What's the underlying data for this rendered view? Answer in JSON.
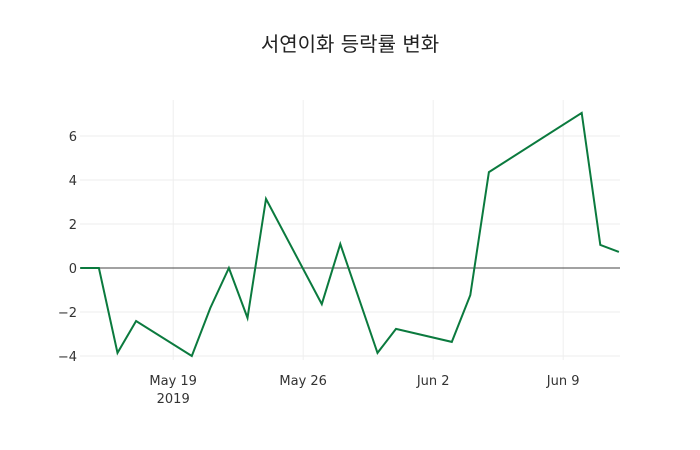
{
  "chart_data": {
    "type": "line",
    "title": "서연이화 등락률 변화",
    "xlabel": "",
    "ylabel": "",
    "x": [
      "2019-05-14",
      "2019-05-15",
      "2019-05-16",
      "2019-05-17",
      "2019-05-20",
      "2019-05-21",
      "2019-05-22",
      "2019-05-23",
      "2019-05-24",
      "2019-05-27",
      "2019-05-28",
      "2019-05-30",
      "2019-05-31",
      "2019-06-03",
      "2019-06-04",
      "2019-06-05",
      "2019-06-10",
      "2019-06-11",
      "2019-06-12"
    ],
    "series": [
      {
        "name": "등락률",
        "color": "#0b7a3e",
        "values": [
          0,
          0,
          -3.86,
          -2.41,
          -4.0,
          -1.82,
          0,
          -2.27,
          3.14,
          -1.64,
          1.09,
          -3.86,
          -2.77,
          -3.36,
          -1.23,
          4.36,
          7.05,
          1.05,
          0.73
        ]
      }
    ],
    "ylim": [
      -4.5,
      7.6
    ],
    "yticks": [
      -4,
      -2,
      0,
      2,
      4,
      6
    ],
    "ytick_labels": [
      "−4",
      "−2",
      "0",
      "2",
      "4",
      "6"
    ],
    "xticks": [
      {
        "date": "2019-05-19",
        "label": "May 19",
        "sublabel": "2019"
      },
      {
        "date": "2019-05-26",
        "label": "May 26",
        "sublabel": ""
      },
      {
        "date": "2019-06-02",
        "label": "Jun 2",
        "sublabel": ""
      },
      {
        "date": "2019-06-09",
        "label": "Jun 9",
        "sublabel": ""
      }
    ],
    "grid": true,
    "zeroline": true,
    "legend": false
  }
}
